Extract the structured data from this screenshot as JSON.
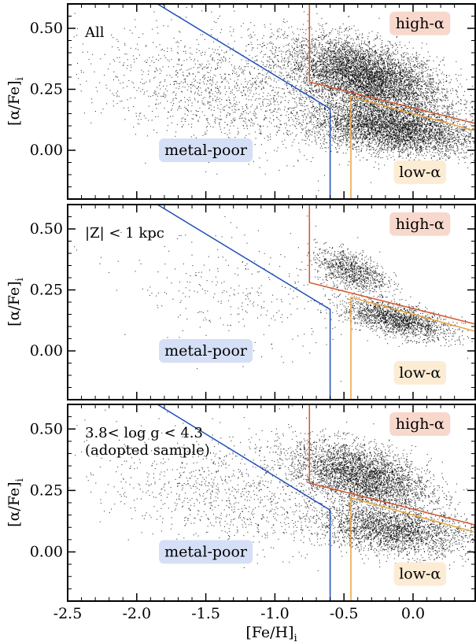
{
  "chart_data": {
    "type": "scatter",
    "xlabel_main": "[Fe/H]",
    "xlabel_sub": "i",
    "ylabel_main": "[α/Fe]",
    "ylabel_sub": "i",
    "xlim": [
      -2.5,
      0.45
    ],
    "ylim": [
      -0.2,
      0.6
    ],
    "x_ticks": [
      {
        "value": -2.5,
        "label": "-2.5"
      },
      {
        "value": -2.0,
        "label": "-2.0"
      },
      {
        "value": -1.5,
        "label": "-1.5"
      },
      {
        "value": -1.0,
        "label": "-1.0"
      },
      {
        "value": -0.5,
        "label": "-0.5"
      },
      {
        "value": 0.0,
        "label": "0.0"
      }
    ],
    "y_ticks": [
      {
        "value": 0.5,
        "label": "0.50"
      },
      {
        "value": 0.25,
        "label": "0.25"
      },
      {
        "value": 0.0,
        "label": "0.00"
      }
    ],
    "boundaries": {
      "metal_poor": {
        "color": "#1f4fb8",
        "points": [
          [
            -1.85,
            0.6
          ],
          [
            -0.6,
            0.17
          ],
          [
            -0.6,
            -0.2
          ]
        ]
      },
      "high_alpha": {
        "color": "#d2552b",
        "points": [
          [
            -0.75,
            0.6
          ],
          [
            -0.75,
            0.28
          ],
          [
            0.45,
            0.11
          ]
        ]
      },
      "low_alpha": {
        "color": "#e8a43a",
        "points": [
          [
            -0.45,
            -0.2
          ],
          [
            -0.45,
            0.22
          ],
          [
            0.45,
            0.08
          ]
        ]
      }
    },
    "region_labels": {
      "high_alpha": {
        "text": "high-α",
        "color": "#f8d8cc",
        "x": 0.05,
        "y": 0.52
      },
      "low_alpha": {
        "text": "low-α",
        "color": "#fdecd4",
        "x": 0.05,
        "y": -0.09
      },
      "metal_poor": {
        "text": "metal-poor",
        "color": "#d5dff5",
        "x": -1.5,
        "y": 0.0
      }
    },
    "panels": [
      {
        "label_lines": [
          "All"
        ],
        "populations": [
          {
            "kind": "thick",
            "cx": -0.35,
            "cy": 0.3,
            "sx": 0.28,
            "sy": 0.08,
            "rho": -0.45,
            "n": 6200
          },
          {
            "kind": "thin",
            "cx": -0.15,
            "cy": 0.09,
            "sx": 0.3,
            "sy": 0.055,
            "rho": -0.35,
            "n": 4500
          },
          {
            "kind": "halo",
            "cx": -1.35,
            "cy": 0.24,
            "sx": 0.45,
            "sy": 0.13,
            "rho": -0.3,
            "n": 1500
          }
        ]
      },
      {
        "label_lines": [
          "|Z| < 1 kpc"
        ],
        "populations": [
          {
            "kind": "thick",
            "cx": -0.45,
            "cy": 0.33,
            "sx": 0.13,
            "sy": 0.045,
            "rho": -0.45,
            "n": 1000
          },
          {
            "kind": "thin",
            "cx": -0.12,
            "cy": 0.13,
            "sx": 0.2,
            "sy": 0.04,
            "rho": -0.6,
            "n": 1800
          },
          {
            "kind": "halo",
            "cx": -1.25,
            "cy": 0.22,
            "sx": 0.4,
            "sy": 0.12,
            "rho": -0.3,
            "n": 300
          }
        ]
      },
      {
        "label_lines": [
          "3.8< log g < 4.3",
          "(adopted sample)"
        ],
        "populations": [
          {
            "kind": "thick",
            "cx": -0.38,
            "cy": 0.31,
            "sx": 0.25,
            "sy": 0.07,
            "rho": -0.45,
            "n": 3800
          },
          {
            "kind": "thin",
            "cx": -0.15,
            "cy": 0.09,
            "sx": 0.28,
            "sy": 0.05,
            "rho": -0.35,
            "n": 2600
          },
          {
            "kind": "halo",
            "cx": -1.35,
            "cy": 0.24,
            "sx": 0.42,
            "sy": 0.12,
            "rho": -0.3,
            "n": 1000
          }
        ]
      }
    ]
  }
}
